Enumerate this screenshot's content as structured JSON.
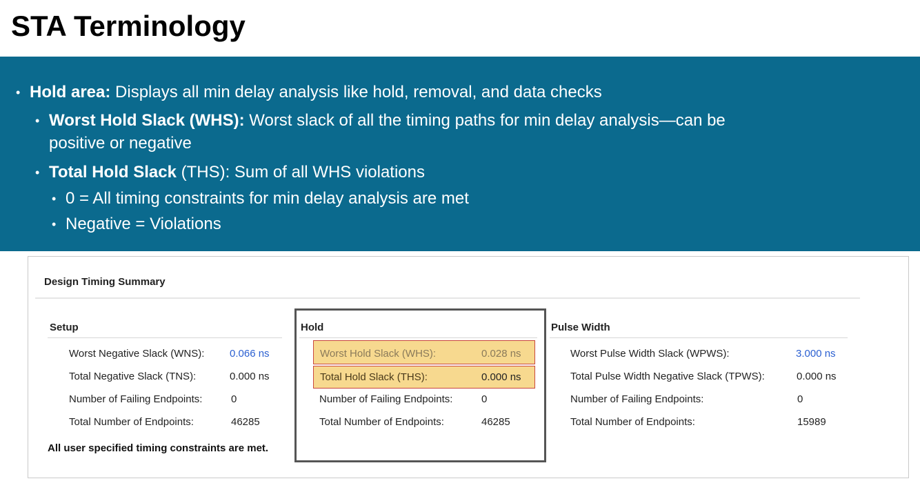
{
  "slide": {
    "title": "STA Terminology"
  },
  "bullets": {
    "b1_bold": "Hold area:",
    "b1_text": " Displays all min delay analysis like hold, removal, and data checks",
    "b2_bold": "Worst Hold Slack (WHS):",
    "b2_text": " Worst slack of all the timing paths for min delay analysis—can be",
    "b2_cont": "positive or negative",
    "b3_bold": "Total Hold Slack",
    "b3_text": " (THS): Sum of all WHS violations",
    "b4_text": "0 = All timing constraints for min delay analysis are met",
    "b5_text": "Negative = Violations",
    "dot": "•"
  },
  "summary": {
    "title": "Design Timing Summary",
    "setup": {
      "header": "Setup",
      "rows": [
        {
          "label": "Worst Negative Slack (WNS):",
          "value": "0.066 ns"
        },
        {
          "label": "Total Negative Slack (TNS):",
          "value": "0.000 ns"
        },
        {
          "label": "Number of Failing Endpoints:",
          "value": "0"
        },
        {
          "label": "Total Number of Endpoints:",
          "value": "46285"
        }
      ]
    },
    "hold": {
      "header": "Hold",
      "rows": [
        {
          "label": "Worst Hold Slack (WHS):",
          "value": "0.028 ns"
        },
        {
          "label": "Total Hold Slack (THS):",
          "value": "0.000 ns"
        },
        {
          "label": "Number of Failing Endpoints:",
          "value": "0"
        },
        {
          "label": "Total Number of Endpoints:",
          "value": "46285"
        }
      ]
    },
    "pulse": {
      "header": "Pulse Width",
      "rows": [
        {
          "label": "Worst Pulse Width Slack (WPWS):",
          "value": "3.000 ns"
        },
        {
          "label": "Total Pulse Width Negative Slack (TPWS):",
          "value": "0.000 ns"
        },
        {
          "label": "Number of Failing Endpoints:",
          "value": "0"
        },
        {
          "label": "Total Number of Endpoints:",
          "value": "15989"
        }
      ]
    },
    "status_message": "All user specified timing constraints are met."
  },
  "colors": {
    "banner": "#0b6a8e",
    "link": "#2a5fd1",
    "highlight_fill": "#f7d98f",
    "highlight_border": "#c9463d"
  }
}
